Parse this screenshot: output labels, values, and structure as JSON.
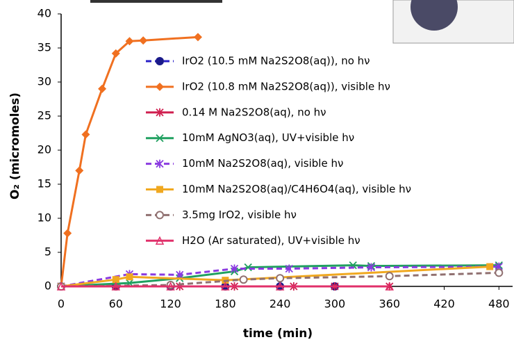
{
  "chart_data": {
    "type": "line",
    "x_label": "time (min)",
    "y_label": "O₂ (micromoles)",
    "xlim": [
      0,
      495
    ],
    "xticks": [
      0,
      60,
      120,
      180,
      240,
      300,
      360,
      420,
      480
    ],
    "ylim": [
      0,
      40
    ],
    "yticks": [
      0,
      5,
      10,
      15,
      20,
      25,
      30,
      35,
      40
    ],
    "series": [
      {
        "name": "IrO2 (10.5 mM Na2S2O8(aq)), no hν",
        "color": "#2a20c8",
        "marker": "circle",
        "dash": true,
        "x": [
          0,
          60,
          120,
          180,
          240,
          300
        ],
        "values": [
          0,
          0,
          0,
          0,
          0,
          0
        ]
      },
      {
        "name": "IrO2 (10.8 mM Na2S2O8(aq)), visible hν",
        "color": "#f07020",
        "marker": "diamond",
        "dash": false,
        "x": [
          0,
          7,
          20,
          27,
          45,
          60,
          75,
          90,
          150
        ],
        "values": [
          0,
          7.8,
          17,
          22.3,
          29,
          34.2,
          36,
          36.1,
          36.6
        ]
      },
      {
        "name": "0.14 M Na2S2O8(aq), no hν",
        "color": "#d02050",
        "marker": "asterisk",
        "dash": false,
        "x": [
          0,
          60,
          130,
          190,
          255,
          300,
          360
        ],
        "values": [
          0,
          0,
          0,
          0,
          0,
          0,
          0
        ]
      },
      {
        "name": "10mM AgNO3(aq), UV+visible hν",
        "color": "#20a060",
        "marker": "cross",
        "dash": false,
        "x": [
          0,
          75,
          130,
          190,
          205,
          320,
          340,
          480
        ],
        "values": [
          0,
          0.5,
          1.2,
          2.2,
          2.8,
          3.1,
          3,
          3.1
        ]
      },
      {
        "name": "10mM Na2S2O8(aq), visible hν",
        "color": "#8a3ae0",
        "marker": "asterisk",
        "dash": true,
        "x": [
          0,
          75,
          130,
          190,
          250,
          340,
          480
        ],
        "values": [
          0,
          1.8,
          1.7,
          2.6,
          2.6,
          2.8,
          2.9
        ]
      },
      {
        "name": "10mM Na2S2O8(aq)/C4H6O4(aq), visible hν",
        "color": "#f0a820",
        "marker": "square",
        "dash": false,
        "x": [
          0,
          60,
          75,
          180,
          470
        ],
        "values": [
          0,
          1,
          1.4,
          0.9,
          2.9
        ]
      },
      {
        "name": "3.5mg IrO2, visible hν",
        "color": "#907070",
        "marker": "ring",
        "dash": true,
        "x": [
          0,
          120,
          200,
          240,
          360,
          480
        ],
        "values": [
          0,
          0.2,
          1,
          1.2,
          1.5,
          2
        ]
      },
      {
        "name": "H2O (Ar saturated), UV+visible hν",
        "color": "#e0306a",
        "marker": "triangle",
        "dash": false,
        "x": [
          0,
          60,
          120,
          180,
          240,
          360
        ],
        "values": [
          0,
          0,
          0,
          0,
          0,
          0
        ]
      }
    ]
  }
}
